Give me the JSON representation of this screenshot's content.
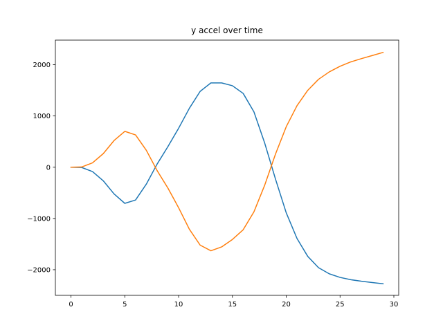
{
  "chart_data": {
    "type": "line",
    "title": "y accel over time",
    "xlabel": "",
    "ylabel": "",
    "xlim": [
      -1.45,
      30.45
    ],
    "ylim": [
      -2500,
      2480
    ],
    "xticks": [
      0,
      5,
      10,
      15,
      20,
      25,
      30
    ],
    "yticks": [
      -2000,
      -1000,
      0,
      1000,
      2000
    ],
    "ytick_labels": [
      "−2000",
      "−1000",
      "0",
      "1000",
      "2000"
    ],
    "grid": false,
    "legend": "none",
    "x": [
      0,
      1,
      2,
      3,
      4,
      5,
      6,
      7,
      8,
      9,
      10,
      11,
      12,
      13,
      14,
      15,
      16,
      17,
      18,
      19,
      20,
      21,
      22,
      23,
      24,
      25,
      26,
      27,
      28,
      29
    ],
    "series": [
      {
        "color": "#1f77b4",
        "values": [
          0,
          -5,
          -85,
          -265,
          -520,
          -705,
          -640,
          -330,
          60,
          400,
          760,
          1150,
          1480,
          1645,
          1645,
          1590,
          1440,
          1080,
          470,
          -230,
          -890,
          -1390,
          -1740,
          -1960,
          -2080,
          -2150,
          -2195,
          -2225,
          -2250,
          -2275
        ]
      },
      {
        "color": "#ff7f0e",
        "values": [
          0,
          5,
          85,
          265,
          520,
          700,
          630,
          330,
          -65,
          -405,
          -790,
          -1210,
          -1520,
          -1630,
          -1555,
          -1410,
          -1220,
          -870,
          -350,
          255,
          790,
          1200,
          1500,
          1715,
          1860,
          1970,
          2055,
          2120,
          2180,
          2240
        ]
      }
    ]
  }
}
